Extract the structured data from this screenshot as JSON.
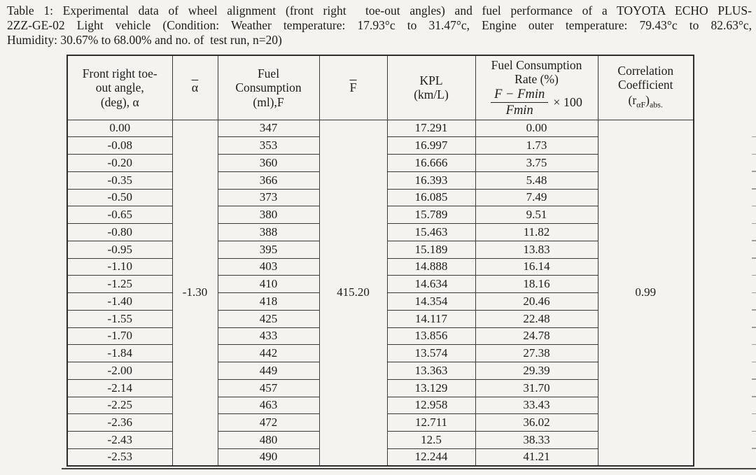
{
  "caption": {
    "lines": [
      "Table 1: Experimental data of wheel alignment (front right  toe-out angles) and fuel performance of a TOYOTA ECHO PLUS-",
      "2ZZ-GE-02 Light vehicle (Condition: Weather temperature: 17.93°c to 31.47°c, Engine outer temperature: 79.43°c to 82.63°c,",
      "Humidity: 30.67% to 68.00% and no. of  test run, n=20)"
    ]
  },
  "table": {
    "headers": {
      "angle": {
        "lines": [
          "Front right toe-",
          "out angle,",
          "(deg), α"
        ]
      },
      "alpha_mean": {
        "symbol": "α"
      },
      "fuel": {
        "lines": [
          "Fuel",
          "Consumption",
          "(ml),F"
        ]
      },
      "f_mean": {
        "symbol": "F"
      },
      "kpl": {
        "lines": [
          "KPL",
          "(km/L)"
        ]
      },
      "rate": {
        "lines": [
          "Fuel Consumption",
          "Rate (%)"
        ],
        "formula": {
          "numerator": "F − Fmin",
          "denominator": "Fmin",
          "multiplier": "× 100"
        }
      },
      "correlation": {
        "lines": [
          "Correlation",
          "Coefficient"
        ],
        "symbol": {
          "p1": "(r",
          "sub1": "αF",
          "p2": ")",
          "sub2": "abs."
        }
      }
    },
    "rows": {
      "angle": [
        "0.00",
        "-0.08",
        "-0.20",
        "-0.35",
        "-0.50",
        "-0.65",
        "-0.80",
        "-0.95",
        "-1.10",
        "-1.25",
        "-1.40",
        "-1.55",
        "-1.70",
        "-1.84",
        "-2.00",
        "-2.14",
        "-2.25",
        "-2.36",
        "-2.43",
        "-2.53"
      ],
      "fuel": [
        "347",
        "353",
        "360",
        "366",
        "373",
        "380",
        "388",
        "395",
        "403",
        "410",
        "418",
        "425",
        "433",
        "442",
        "449",
        "457",
        "463",
        "472",
        "480",
        "490"
      ],
      "kpl": [
        "17.291",
        "16.997",
        "16.666",
        "16.393",
        "16.085",
        "15.789",
        "15.463",
        "15.189",
        "14.888",
        "14.634",
        "14.354",
        "14.117",
        "13.856",
        "13.574",
        "13.363",
        "13.129",
        "12.958",
        "12.711",
        "12.5",
        "12.244"
      ],
      "rate": [
        "0.00",
        "1.73",
        "3.75",
        "5.48",
        "7.49",
        "9.51",
        "11.82",
        "13.83",
        "16.14",
        "18.16",
        "20.46",
        "22.48",
        "24.78",
        "27.38",
        "29.39",
        "31.70",
        "33.43",
        "36.02",
        "38.33",
        "41.21"
      ]
    },
    "merged": {
      "alpha_mean": "-1.30",
      "f_mean": "415.20",
      "correlation": "0.99"
    }
  },
  "colors": {
    "page_bg": "#f4f3f0",
    "line": "#3a3a3a",
    "text": "#1c1c1c"
  }
}
